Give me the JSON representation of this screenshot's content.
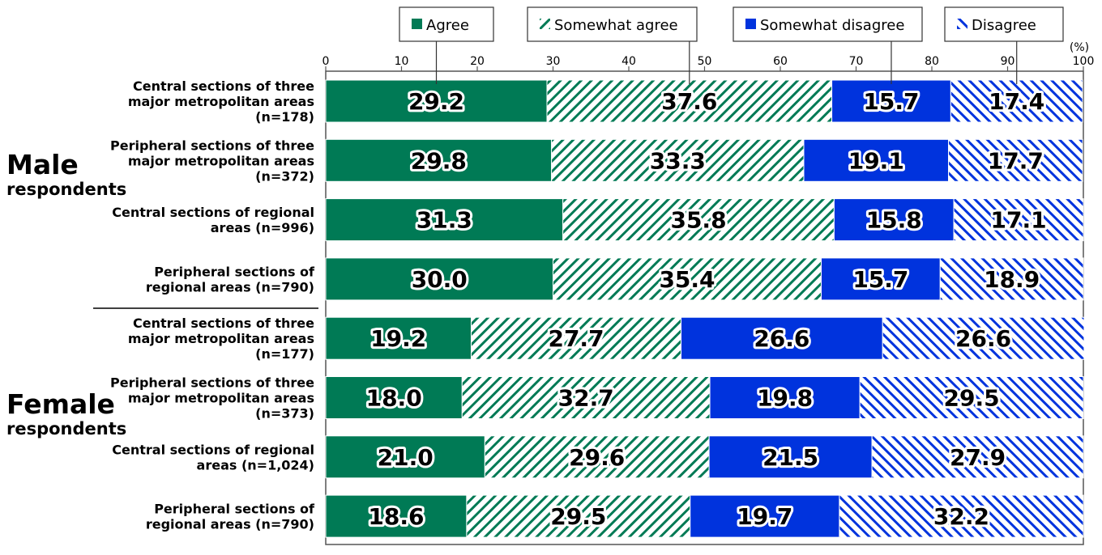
{
  "chart_data": {
    "type": "bar",
    "orientation": "horizontal",
    "stacked": true,
    "unit_label": "(%)",
    "xlim": [
      0,
      100
    ],
    "x_ticks": [
      "0",
      "10",
      "20",
      "30",
      "40",
      "50",
      "60",
      "70",
      "80",
      "90",
      "100"
    ],
    "legend": [
      "Agree",
      "Somewhat agree",
      "Somewhat disagree",
      "Disagree"
    ],
    "groups": [
      {
        "main": "Male",
        "sub": "respondents"
      },
      {
        "main": "Female",
        "sub": "respondents"
      }
    ],
    "categories": [
      [
        "Central sections of three",
        "major metropolitan areas",
        "(n=178)"
      ],
      [
        "Peripheral sections of three",
        "major metropolitan areas",
        "(n=372)"
      ],
      [
        "Central sections of regional",
        "areas (n=996)"
      ],
      [
        "Peripheral sections of",
        "regional areas (n=790)"
      ],
      [
        "Central sections of three",
        "major metropolitan areas",
        "(n=177)"
      ],
      [
        "Peripheral sections of three",
        "major metropolitan areas",
        "(n=373)"
      ],
      [
        "Central sections of regional",
        "areas (n=1,024)"
      ],
      [
        "Peripheral sections of",
        "regional areas (n=790)"
      ]
    ],
    "series": [
      {
        "name": "Agree",
        "values": [
          29.2,
          29.8,
          31.3,
          30.0,
          19.2,
          18.0,
          21.0,
          18.6
        ],
        "labels": [
          "29.2",
          "29.8",
          "31.3",
          "30.0",
          "19.2",
          "18.0",
          "21.0",
          "18.6"
        ]
      },
      {
        "name": "Somewhat agree",
        "values": [
          37.6,
          33.3,
          35.8,
          35.4,
          27.7,
          32.7,
          29.6,
          29.5
        ],
        "labels": [
          "37.6",
          "33.3",
          "35.8",
          "35.4",
          "27.7",
          "32.7",
          "29.6",
          "29.5"
        ]
      },
      {
        "name": "Somewhat disagree",
        "values": [
          15.7,
          19.1,
          15.8,
          15.7,
          26.6,
          19.8,
          21.5,
          19.7
        ],
        "labels": [
          "15.7",
          "19.1",
          "15.8",
          "15.7",
          "26.6",
          "19.8",
          "21.5",
          "19.7"
        ]
      },
      {
        "name": "Disagree",
        "values": [
          17.4,
          17.7,
          17.1,
          18.9,
          26.6,
          29.5,
          27.9,
          32.2
        ],
        "labels": [
          "17.4",
          "17.7",
          "17.1",
          "18.9",
          "26.6",
          "29.5",
          "27.9",
          "32.2"
        ]
      }
    ],
    "colors": {
      "agree": "#007a55",
      "disagree_blue": "#0033dd",
      "frame": "#555555"
    }
  }
}
